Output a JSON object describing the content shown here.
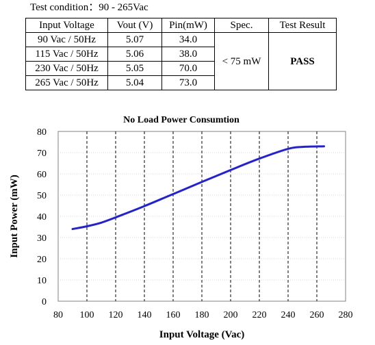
{
  "test_condition": "Test condition：90 - 265Vac",
  "table": {
    "headers": [
      "Input Voltage",
      "Vout (V)",
      "Pin(mW)",
      "Spec.",
      "Test Result"
    ],
    "rows": [
      [
        "90 Vac / 50Hz",
        "5.07",
        "34.0"
      ],
      [
        "115 Vac / 50Hz",
        "5.06",
        "38.0"
      ],
      [
        "230 Vac / 50Hz",
        "5.05",
        "70.0"
      ],
      [
        "265 Vac / 50Hz",
        "5.04",
        "73.0"
      ]
    ],
    "spec": "< 75 mW",
    "result": "PASS"
  },
  "chart_data": {
    "type": "line",
    "title": "No Load Power Consumtion",
    "xlabel": "Input Voltage (Vac)",
    "ylabel": "Input Power (mW)",
    "xlim": [
      80,
      280
    ],
    "ylim": [
      0,
      80
    ],
    "xticks": [
      80,
      100,
      120,
      140,
      160,
      180,
      200,
      220,
      240,
      260,
      280
    ],
    "yticks": [
      0,
      10,
      20,
      30,
      40,
      50,
      60,
      70,
      80
    ],
    "grid": "vertical dashed",
    "series": [
      {
        "color": "#1f1fe6",
        "x": [
          90,
          100,
          110,
          120,
          140,
          160,
          180,
          200,
          220,
          240,
          250,
          265
        ],
        "y": [
          34.0,
          35.3,
          37.0,
          39.5,
          44.8,
          50.5,
          56.2,
          61.8,
          67.2,
          71.8,
          72.7,
          73.0
        ]
      }
    ]
  }
}
